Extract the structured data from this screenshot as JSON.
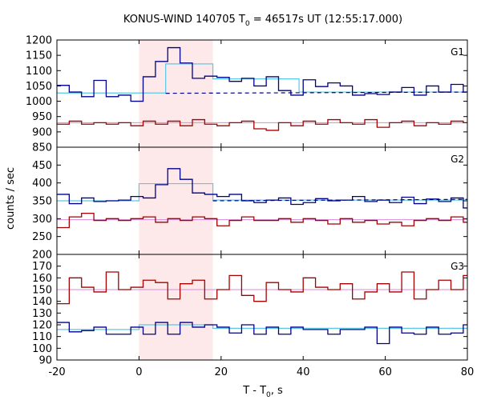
{
  "chart_data": {
    "type": "line",
    "title": {
      "main": "KONUS-WIND 140705 T",
      "sub": "0",
      "rest": " = 46517s UT (12:55:17.000)"
    },
    "xlabel": {
      "main": "T - T",
      "sub": "0",
      "rest": ", s"
    },
    "ylabel": "counts / sec",
    "xlim": [
      -20,
      80
    ],
    "xticks": [
      "-20",
      "0",
      "20",
      "40",
      "60",
      "80"
    ],
    "highlight_interval": [
      0,
      18
    ],
    "colors": {
      "counts": "#00008b",
      "background_counts": "#a50000",
      "fit": "#5bc8e6",
      "background_fit": "#d98ad9",
      "highlight": "#fde8ea",
      "dashed": "#00008b"
    },
    "step_edges": [
      -20,
      -17,
      -14,
      -11,
      -8,
      -5,
      -2,
      1,
      4,
      7,
      10,
      13,
      16,
      19,
      22,
      25,
      28,
      31,
      34,
      37,
      40,
      43,
      46,
      49,
      52,
      55,
      58,
      61,
      64,
      67,
      70,
      73,
      76,
      79,
      80
    ],
    "panels": [
      {
        "label": "G1",
        "ylim": [
          850,
          1200
        ],
        "yticks": [
          "850",
          "900",
          "950",
          "1000",
          "1050",
          "1100",
          "1150",
          "1200"
        ],
        "counts": [
          1052,
          1030,
          1015,
          1068,
          1015,
          1020,
          1000,
          1080,
          1130,
          1175,
          1125,
          1075,
          1082,
          1078,
          1065,
          1075,
          1050,
          1080,
          1035,
          1020,
          1070,
          1048,
          1060,
          1050,
          1020,
          1025,
          1022,
          1030,
          1045,
          1020,
          1050,
          1030,
          1055,
          1030
        ],
        "background": [
          925,
          935,
          925,
          930,
          925,
          930,
          920,
          935,
          925,
          935,
          920,
          940,
          925,
          920,
          930,
          935,
          910,
          905,
          930,
          920,
          935,
          925,
          940,
          930,
          925,
          940,
          915,
          930,
          935,
          920,
          930,
          925,
          935,
          930
        ],
        "fit_steps": [
          [
            -20,
            1027
          ],
          [
            0,
            1027
          ],
          [
            6.5,
            1122
          ],
          [
            18,
            1073
          ],
          [
            39,
            1030
          ],
          [
            80,
            1030
          ]
        ],
        "dashed_line": [
          [
            6.5,
            1026
          ],
          [
            80,
            1030
          ]
        ],
        "background_fit": 930
      },
      {
        "label": "G2",
        "ylim": [
          200,
          500
        ],
        "yticks": [
          "200",
          "250",
          "300",
          "350",
          "400",
          "450"
        ],
        "counts": [
          368,
          342,
          358,
          348,
          350,
          352,
          362,
          358,
          395,
          440,
          410,
          372,
          368,
          362,
          368,
          350,
          345,
          352,
          358,
          340,
          345,
          356,
          350,
          352,
          362,
          348,
          352,
          345,
          360,
          342,
          355,
          348,
          358,
          330
        ],
        "background": [
          275,
          305,
          315,
          295,
          300,
          295,
          300,
          305,
          290,
          300,
          295,
          305,
          300,
          280,
          295,
          305,
          295,
          295,
          300,
          290,
          300,
          295,
          285,
          300,
          290,
          295,
          285,
          290,
          280,
          295,
          300,
          295,
          305,
          290
        ],
        "fit_steps": [
          [
            -20,
            350
          ],
          [
            0,
            350
          ],
          [
            0,
            398
          ],
          [
            18,
            368
          ],
          [
            18,
            352
          ],
          [
            80,
            352
          ]
        ],
        "dashed_line": [
          [
            18,
            350
          ],
          [
            80,
            354
          ]
        ],
        "background_fit": 297
      },
      {
        "label": "G3",
        "ylim": [
          90,
          180
        ],
        "yticks": [
          "90",
          "100",
          "110",
          "120",
          "130",
          "140",
          "150",
          "160",
          "170"
        ],
        "counts": [
          122,
          114,
          115,
          118,
          112,
          112,
          118,
          112,
          122,
          112,
          122,
          118,
          120,
          118,
          113,
          120,
          112,
          118,
          112,
          118,
          116,
          116,
          112,
          116,
          116,
          118,
          104,
          118,
          113,
          112,
          118,
          112,
          113,
          120
        ],
        "background": [
          138,
          160,
          152,
          148,
          165,
          150,
          152,
          158,
          156,
          142,
          155,
          158,
          142,
          150,
          162,
          145,
          140,
          156,
          150,
          148,
          160,
          152,
          150,
          155,
          142,
          148,
          155,
          148,
          165,
          142,
          150,
          158,
          150,
          162
        ],
        "fit_steps": [
          [
            -20,
            116
          ],
          [
            0,
            116
          ],
          [
            0,
            120
          ],
          [
            18,
            120
          ],
          [
            18,
            117
          ],
          [
            80,
            117
          ]
        ],
        "dashed_line": [],
        "background_fit": 150
      }
    ]
  }
}
